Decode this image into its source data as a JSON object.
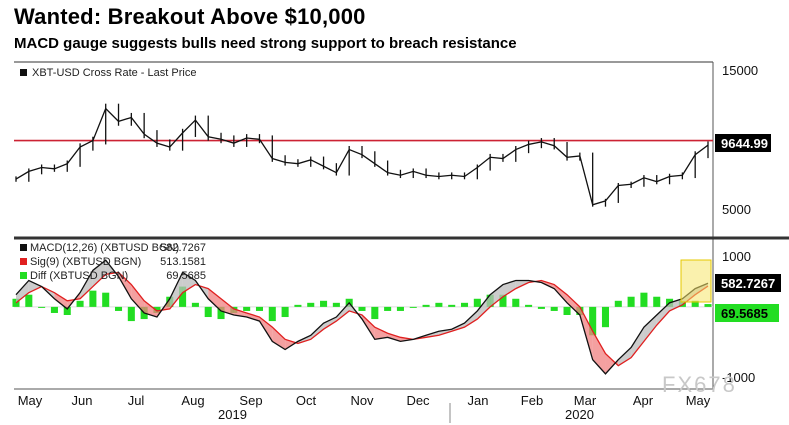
{
  "chart_data": [
    {
      "type": "line",
      "title": "Wanted: Breakout Above $10,000",
      "subtitle": "MACD gauge suggests bulls need strong support to breach resistance",
      "series": [
        {
          "name": "XBT-USD Cross Rate - Last Price",
          "x": [
            "2019-05-01",
            "2019-05-08",
            "2019-05-15",
            "2019-05-22",
            "2019-05-29",
            "2019-06-05",
            "2019-06-12",
            "2019-06-19",
            "2019-06-26",
            "2019-07-03",
            "2019-07-10",
            "2019-07-17",
            "2019-07-24",
            "2019-07-31",
            "2019-08-07",
            "2019-08-14",
            "2019-08-21",
            "2019-08-28",
            "2019-09-04",
            "2019-09-11",
            "2019-09-18",
            "2019-09-25",
            "2019-10-02",
            "2019-10-09",
            "2019-10-16",
            "2019-10-23",
            "2019-10-30",
            "2019-11-06",
            "2019-11-13",
            "2019-11-20",
            "2019-11-27",
            "2019-12-04",
            "2019-12-11",
            "2019-12-18",
            "2019-12-25",
            "2020-01-01",
            "2020-01-08",
            "2020-01-15",
            "2020-01-22",
            "2020-01-29",
            "2020-02-05",
            "2020-02-12",
            "2020-02-19",
            "2020-02-26",
            "2020-03-04",
            "2020-03-11",
            "2020-03-18",
            "2020-03-25",
            "2020-04-01",
            "2020-04-08",
            "2020-04-15",
            "2020-04-22",
            "2020-04-29",
            "2020-05-06",
            "2020-05-08"
          ],
          "values": [
            7000,
            7600,
            7900,
            7800,
            8200,
            9500,
            10000,
            12500,
            11500,
            11800,
            10500,
            9800,
            9500,
            10600,
            11600,
            10300,
            10100,
            9800,
            10200,
            10100,
            8600,
            8300,
            8200,
            8500,
            8000,
            7500,
            9300,
            8900,
            8200,
            7500,
            7300,
            7600,
            7300,
            7200,
            7300,
            7200,
            7900,
            8700,
            8600,
            9300,
            9700,
            9900,
            9600,
            8700,
            8800,
            5000,
            5300,
            6500,
            6600,
            7100,
            6800,
            7200,
            7300,
            8900,
            9644.99
          ]
        }
      ],
      "resistance_level": 10000,
      "last_value_label": "9644.99",
      "y_ticks": [
        "15000",
        "5000"
      ],
      "ylim": [
        3500,
        15500
      ]
    },
    {
      "type": "line",
      "series": [
        {
          "name": "MACD(12,26) (XBTUSD BGN)",
          "last": "582.7267",
          "color": "#111111",
          "values": [
            300,
            650,
            500,
            200,
            -50,
            350,
            900,
            1150,
            750,
            200,
            -150,
            -250,
            200,
            850,
            650,
            200,
            -100,
            -200,
            -250,
            -350,
            -850,
            -1050,
            -850,
            -700,
            -400,
            -250,
            100,
            -300,
            -800,
            -750,
            -850,
            -800,
            -700,
            -600,
            -550,
            -400,
            -100,
            300,
            550,
            650,
            650,
            600,
            450,
            100,
            -200,
            -1300,
            -1650,
            -1300,
            -1000,
            -500,
            -200,
            100,
            200,
            450,
            582.7267
          ]
        },
        {
          "name": "Sig(9) (XBTUSD BGN)",
          "last": "513.1581",
          "color": "#e02020",
          "values": [
            100,
            350,
            500,
            350,
            150,
            200,
            500,
            800,
            850,
            550,
            150,
            -100,
            -50,
            350,
            550,
            450,
            200,
            -50,
            -150,
            -250,
            -500,
            -800,
            -900,
            -800,
            -550,
            -350,
            -100,
            -200,
            -500,
            -650,
            -750,
            -800,
            -750,
            -700,
            -600,
            -500,
            -300,
            0,
            250,
            450,
            600,
            650,
            550,
            300,
            0,
            -600,
            -1150,
            -1450,
            -1250,
            -850,
            -450,
            -100,
            50,
            300,
            513.1581
          ]
        },
        {
          "name": "Diff (XBTUSD BGN)",
          "last": "69.5685",
          "color": "#22dd22",
          "values": [
            200,
            300,
            0,
            -150,
            -200,
            150,
            400,
            350,
            -100,
            -350,
            -300,
            -150,
            250,
            500,
            100,
            -250,
            -300,
            -150,
            -100,
            -100,
            -350,
            -250,
            50,
            100,
            150,
            100,
            200,
            -100,
            -300,
            -100,
            -100,
            0,
            50,
            100,
            50,
            100,
            200,
            300,
            300,
            200,
            50,
            -50,
            -100,
            -200,
            -200,
            -700,
            -500,
            150,
            250,
            350,
            250,
            200,
            150,
            150,
            69.5685
          ]
        }
      ],
      "y_ticks": [
        "1000",
        "-1000"
      ],
      "ylim": [
        -1900,
        1500
      ]
    }
  ],
  "x_axis": {
    "month_labels": [
      "May",
      "Jun",
      "Jul",
      "Aug",
      "Sep",
      "Oct",
      "Nov",
      "Dec",
      "Jan",
      "Feb",
      "Mar",
      "Apr",
      "May"
    ],
    "year_labels": [
      "2019",
      "2020"
    ]
  },
  "tags": {
    "price": "9644.99",
    "macd": "582.7267",
    "diff": "69.5685"
  },
  "watermark": "FX678"
}
